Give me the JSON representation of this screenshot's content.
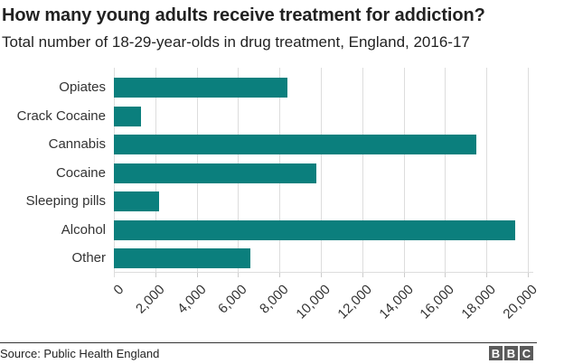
{
  "header": {
    "title": "How many young adults receive treatment for addiction?",
    "subtitle": "Total number of 18-29-year-olds in drug treatment, England, 2016-17"
  },
  "footer": {
    "source": "Source: Public Health England",
    "logo_letters": [
      "B",
      "B",
      "C"
    ]
  },
  "colors": {
    "bar": "#0b7f7d",
    "grid": "#dddddd",
    "text": "#222222",
    "logo_block": "#5a5a5a"
  },
  "chart_data": {
    "type": "bar",
    "orientation": "horizontal",
    "title": "How many young adults receive treatment for addiction?",
    "subtitle": "Total number of 18-29-year-olds in drug treatment, England, 2016-17",
    "categories": [
      "Opiates",
      "Crack Cocaine",
      "Cannabis",
      "Cocaine",
      "Sleeping pills",
      "Alcohol",
      "Other"
    ],
    "values": [
      8400,
      1300,
      17500,
      9800,
      2200,
      19400,
      6600
    ],
    "xlabel": "",
    "ylabel": "",
    "xlim": [
      0,
      20000
    ],
    "xticks": [
      0,
      2000,
      4000,
      6000,
      8000,
      10000,
      12000,
      14000,
      16000,
      18000,
      20000
    ],
    "xtick_labels": [
      "0",
      "2,000",
      "4,000",
      "6,000",
      "8,000",
      "10,000",
      "12,000",
      "14,000",
      "16,000",
      "18,000",
      "20,000"
    ],
    "grid": true,
    "legend": null,
    "source": "Source: Public Health England"
  }
}
